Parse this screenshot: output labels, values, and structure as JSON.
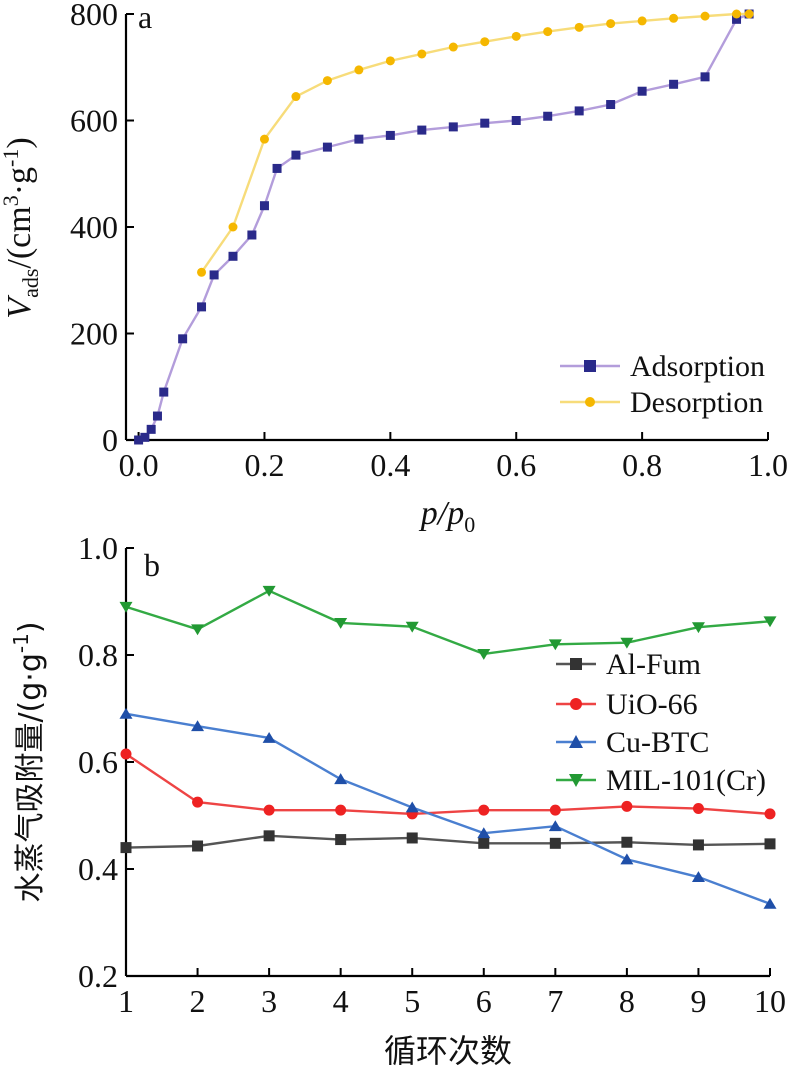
{
  "chart_data": [
    {
      "type": "line",
      "panel_label": "a",
      "xlabel": "p/p0",
      "xlabel_main": "p/p",
      "xlabel_sub": "0",
      "ylabel": "Vads/(cm3·g-1)",
      "ylabel_parts": {
        "main": "V",
        "sub": "ads",
        "mid": "/(cm",
        "sup1": "3",
        "dot": "·g",
        "sup2": "-1",
        "end": ")"
      },
      "xlim": [
        -0.02,
        1.0
      ],
      "ylim": [
        0,
        800
      ],
      "xticks": [
        0.0,
        0.2,
        0.4,
        0.6,
        0.8,
        1.0
      ],
      "xtick_labels": [
        "0.0",
        "0.2",
        "0.4",
        "0.6",
        "0.8",
        "1.0"
      ],
      "yticks": [
        0,
        200,
        400,
        600,
        800
      ],
      "ytick_labels": [
        "0",
        "200",
        "400",
        "600",
        "800"
      ],
      "legend_position": "bottom-right",
      "series": [
        {
          "name": "Adsorption",
          "color": "#b39ddb",
          "marker_color": "#2a2a8a",
          "marker": "square",
          "x": [
            0.0,
            0.01,
            0.02,
            0.03,
            0.04,
            0.07,
            0.1,
            0.12,
            0.15,
            0.18,
            0.2,
            0.22,
            0.25,
            0.3,
            0.35,
            0.4,
            0.45,
            0.5,
            0.55,
            0.6,
            0.65,
            0.7,
            0.75,
            0.8,
            0.85,
            0.9,
            0.95,
            0.97
          ],
          "y": [
            0,
            5,
            20,
            45,
            90,
            190,
            250,
            310,
            345,
            385,
            440,
            510,
            535,
            550,
            565,
            572,
            582,
            588,
            595,
            600,
            608,
            618,
            630,
            655,
            668,
            682,
            790,
            800
          ]
        },
        {
          "name": "Desorption",
          "color": "#f7dc7a",
          "marker_color": "#f5b700",
          "marker": "circle",
          "x": [
            0.1,
            0.15,
            0.2,
            0.25,
            0.3,
            0.35,
            0.4,
            0.45,
            0.5,
            0.55,
            0.6,
            0.65,
            0.7,
            0.75,
            0.8,
            0.85,
            0.9,
            0.95,
            0.97
          ],
          "y": [
            315,
            400,
            565,
            645,
            675,
            695,
            712,
            725,
            738,
            748,
            758,
            767,
            775,
            782,
            787,
            792,
            796,
            800,
            800
          ]
        }
      ]
    },
    {
      "type": "line",
      "panel_label": "b",
      "xlabel": "循环次数",
      "ylabel": "水蒸气吸附量/(g·g-1)",
      "ylabel_parts": {
        "main": "水蒸气吸附量/(g·g",
        "sup": "-1",
        "end": ")"
      },
      "xlim": [
        1,
        10
      ],
      "ylim": [
        0.2,
        1.0
      ],
      "xticks": [
        1,
        2,
        3,
        4,
        5,
        6,
        7,
        8,
        9,
        10
      ],
      "xtick_labels": [
        "1",
        "2",
        "3",
        "4",
        "5",
        "6",
        "7",
        "8",
        "9",
        "10"
      ],
      "yticks": [
        0.2,
        0.4,
        0.6,
        0.8,
        1.0
      ],
      "ytick_labels": [
        "0.2",
        "0.4",
        "0.6",
        "0.8",
        "1.0"
      ],
      "legend_position": "right",
      "x": [
        1,
        2,
        3,
        4,
        5,
        6,
        7,
        8,
        9,
        10
      ],
      "series": [
        {
          "name": "Al-Fum",
          "color": "#555555",
          "marker_color": "#333333",
          "marker": "square",
          "values": [
            0.44,
            0.443,
            0.462,
            0.455,
            0.458,
            0.448,
            0.448,
            0.45,
            0.445,
            0.447
          ]
        },
        {
          "name": "UiO-66",
          "color": "#ee4444",
          "marker_color": "#ee2222",
          "marker": "circle",
          "values": [
            0.615,
            0.525,
            0.51,
            0.51,
            0.503,
            0.51,
            0.51,
            0.517,
            0.513,
            0.503
          ]
        },
        {
          "name": "Cu-BTC",
          "color": "#4a7fd0",
          "marker_color": "#1f4fa8",
          "marker": "triangle-up",
          "values": [
            0.69,
            0.667,
            0.645,
            0.568,
            0.515,
            0.467,
            0.48,
            0.418,
            0.385,
            0.335
          ]
        },
        {
          "name": "MIL-101(Cr)",
          "color": "#33aa44",
          "marker_color": "#229933",
          "marker": "triangle-down",
          "values": [
            0.89,
            0.848,
            0.92,
            0.86,
            0.853,
            0.802,
            0.82,
            0.823,
            0.852,
            0.863
          ]
        }
      ]
    }
  ]
}
